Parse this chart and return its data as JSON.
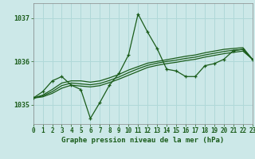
{
  "title": "Graphe pression niveau de la mer (hPa)",
  "bg_color": "#cce8e8",
  "grid_color": "#b0d8d8",
  "line_color": "#1a5c1a",
  "xlim": [
    0,
    23
  ],
  "ylim": [
    1034.55,
    1037.35
  ],
  "yticks": [
    1035,
    1036,
    1037
  ],
  "xticks": [
    0,
    1,
    2,
    3,
    4,
    5,
    6,
    7,
    8,
    9,
    10,
    11,
    12,
    13,
    14,
    15,
    16,
    17,
    18,
    19,
    20,
    21,
    22,
    23
  ],
  "main_x": [
    0,
    1,
    2,
    3,
    4,
    5,
    6,
    7,
    8,
    9,
    10,
    11,
    12,
    13,
    14,
    15,
    16,
    17,
    18,
    19,
    20,
    21,
    22,
    23
  ],
  "main_y": [
    1035.15,
    1035.3,
    1035.55,
    1035.65,
    1035.45,
    1035.35,
    1034.68,
    1035.05,
    1035.45,
    1035.72,
    1036.15,
    1037.1,
    1036.68,
    1036.3,
    1035.82,
    1035.78,
    1035.65,
    1035.65,
    1035.9,
    1035.95,
    1036.05,
    1036.25,
    1036.28,
    1036.05
  ],
  "smooth1_x": [
    0,
    1,
    2,
    3,
    4,
    5,
    6,
    7,
    8,
    9,
    10,
    11,
    12,
    13,
    14,
    15,
    16,
    17,
    18,
    19,
    20,
    21,
    22,
    23
  ],
  "smooth1_y": [
    1035.15,
    1035.22,
    1035.35,
    1035.5,
    1035.55,
    1035.55,
    1035.52,
    1035.55,
    1035.62,
    1035.7,
    1035.8,
    1035.88,
    1035.96,
    1036.0,
    1036.04,
    1036.08,
    1036.12,
    1036.15,
    1036.2,
    1036.24,
    1036.28,
    1036.3,
    1036.32,
    1036.05
  ],
  "smooth2_x": [
    0,
    1,
    2,
    3,
    4,
    5,
    6,
    7,
    8,
    9,
    10,
    11,
    12,
    13,
    14,
    15,
    16,
    17,
    18,
    19,
    20,
    21,
    22,
    23
  ],
  "smooth2_y": [
    1035.15,
    1035.2,
    1035.3,
    1035.44,
    1035.5,
    1035.48,
    1035.46,
    1035.49,
    1035.56,
    1035.64,
    1035.74,
    1035.83,
    1035.91,
    1035.96,
    1036.0,
    1036.03,
    1036.07,
    1036.1,
    1036.15,
    1036.19,
    1036.23,
    1036.26,
    1036.28,
    1036.05
  ],
  "smooth3_x": [
    0,
    1,
    2,
    3,
    4,
    5,
    6,
    7,
    8,
    9,
    10,
    11,
    12,
    13,
    14,
    15,
    16,
    17,
    18,
    19,
    20,
    21,
    22,
    23
  ],
  "smooth3_y": [
    1035.15,
    1035.18,
    1035.26,
    1035.38,
    1035.45,
    1035.43,
    1035.41,
    1035.44,
    1035.51,
    1035.59,
    1035.68,
    1035.77,
    1035.86,
    1035.91,
    1035.95,
    1035.98,
    1036.02,
    1036.05,
    1036.1,
    1036.14,
    1036.18,
    1036.21,
    1036.24,
    1036.05
  ]
}
